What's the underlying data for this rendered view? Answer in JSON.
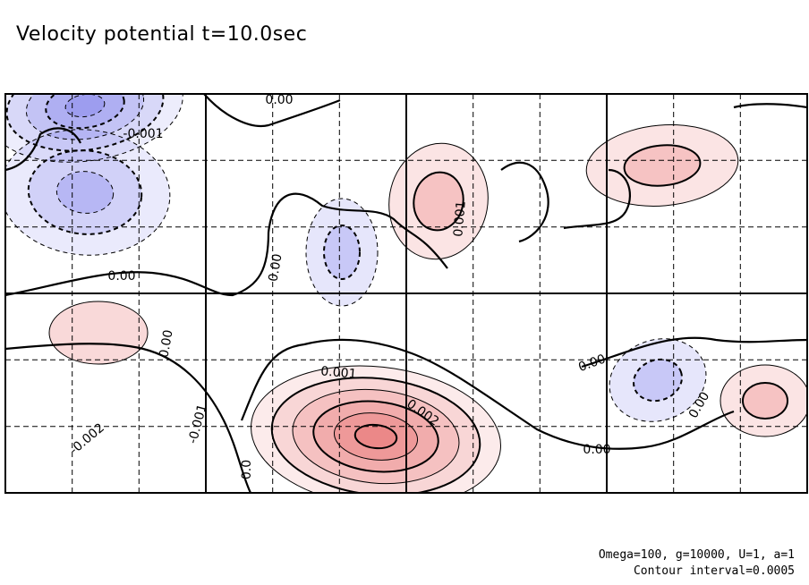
{
  "chart_data": {
    "type": "contour",
    "title": "Velocity potential  t=10.0sec",
    "footnotes": [
      "Omega=100, g=10000, U=1, a=1",
      "Contour interval=0.0005"
    ],
    "contour_interval": 0.0005,
    "contour_labels": [
      "0.00",
      "-0.001",
      "0.00",
      "0.00",
      "0.00",
      "-0.002",
      "-0.001",
      "0.001",
      "0.002",
      "0.00",
      "0.00",
      "0.001",
      "0.00",
      "0.0"
    ],
    "colors": {
      "positive": "#e34a4a",
      "negative": "#5a5ae6",
      "zero_line": "#000000"
    },
    "features": [
      {
        "sign": "negative",
        "peak": -0.0025,
        "center": [
          95,
          118
        ]
      },
      {
        "sign": "negative",
        "peak": -0.0015,
        "center": [
          95,
          215
        ]
      },
      {
        "sign": "negative",
        "peak": -0.0008,
        "center": [
          382,
          282
        ]
      },
      {
        "sign": "negative",
        "peak": -0.0012,
        "center": [
          735,
          425
        ]
      },
      {
        "sign": "positive",
        "peak": 0.0028,
        "center": [
          420,
          488
        ]
      },
      {
        "sign": "positive",
        "peak": 0.001,
        "center": [
          490,
          225
        ]
      },
      {
        "sign": "positive",
        "peak": 0.001,
        "center": [
          740,
          185
        ]
      },
      {
        "sign": "positive",
        "peak": 0.0005,
        "center": [
          110,
          372
        ]
      },
      {
        "sign": "positive",
        "peak": 0.0008,
        "center": [
          855,
          448
        ]
      }
    ]
  }
}
